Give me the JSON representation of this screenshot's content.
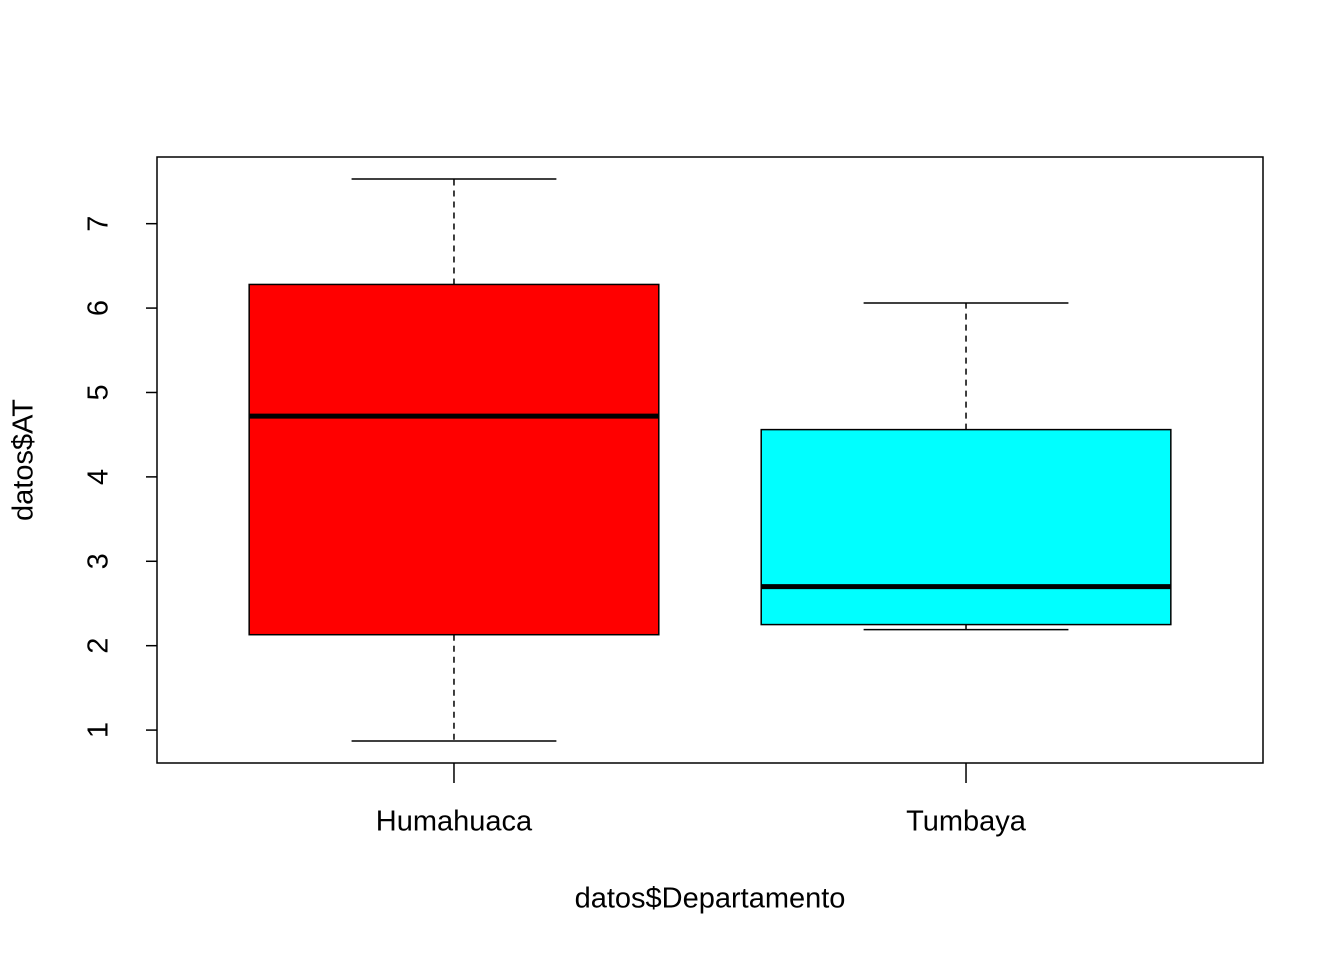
{
  "chart_data": {
    "type": "box",
    "x_label": "datos$Departamento",
    "y_label": "datos$AT",
    "categories": [
      "Humahuaca",
      "Tumbaya"
    ],
    "boxes": [
      {
        "min": 0.87,
        "q1": 2.13,
        "median": 4.72,
        "q3": 6.28,
        "max": 7.53,
        "color": "#ff0000"
      },
      {
        "min": 2.19,
        "q1": 2.25,
        "median": 2.7,
        "q3": 4.56,
        "max": 6.06,
        "color": "#00ffff"
      }
    ],
    "ylim": [
      0.61,
      7.79
    ],
    "yticks": [
      1,
      2,
      3,
      4,
      5,
      6,
      7
    ]
  }
}
